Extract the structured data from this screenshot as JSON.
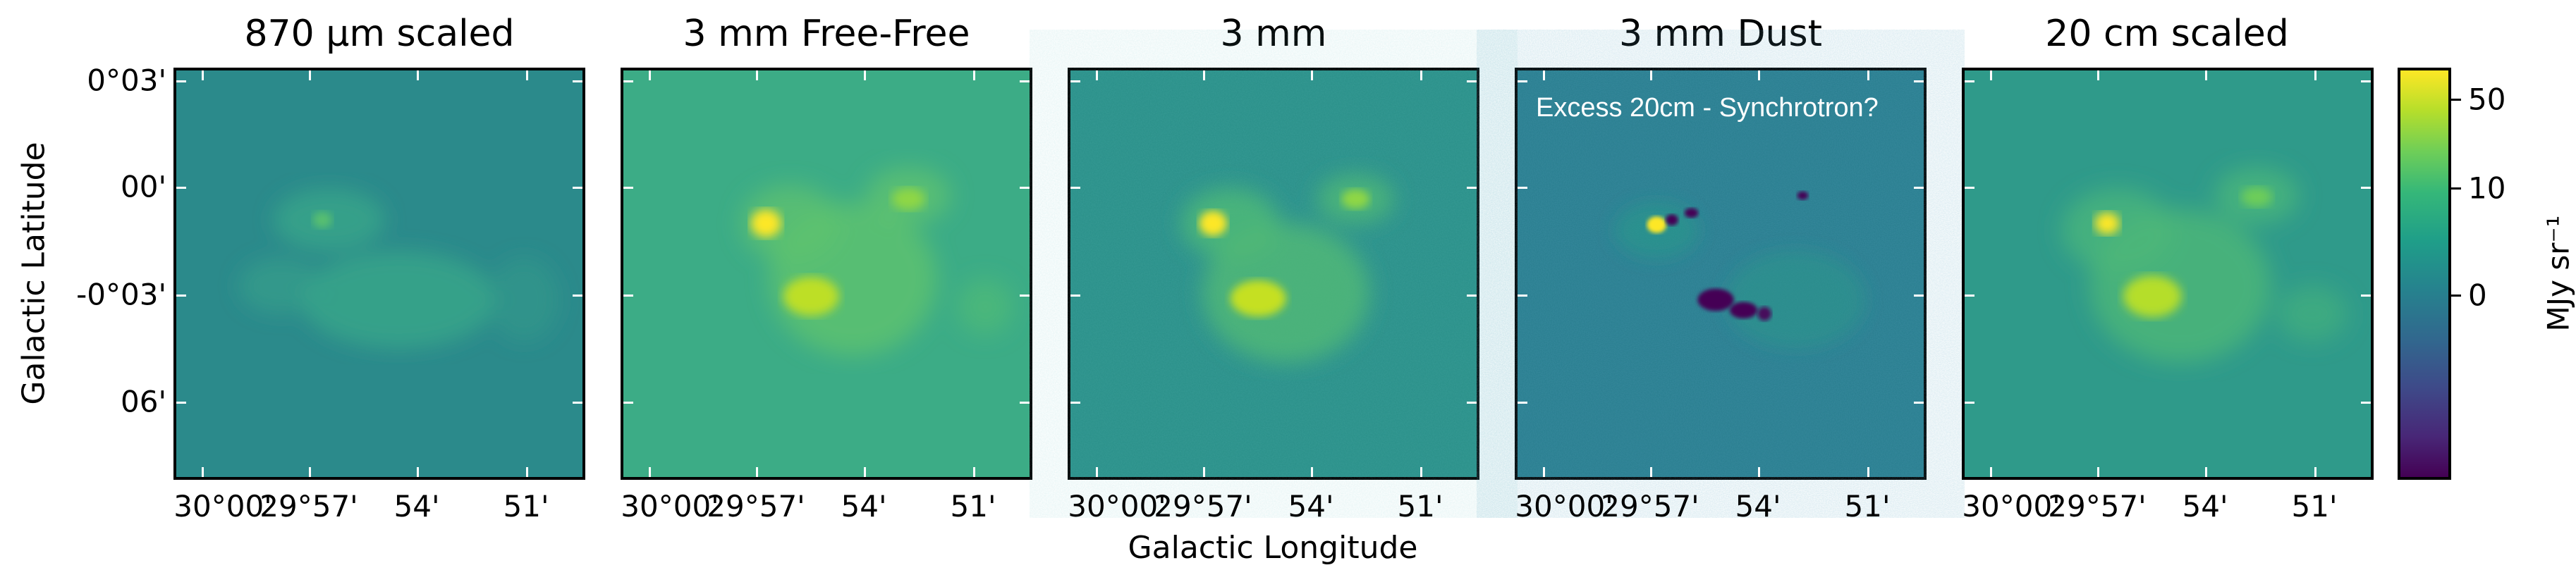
{
  "panels": [
    {
      "title": "870 μm scaled",
      "annotation": ""
    },
    {
      "title": "3 mm Free-Free",
      "annotation": ""
    },
    {
      "title": "3 mm",
      "annotation": ""
    },
    {
      "title": "3 mm Dust",
      "annotation": "Excess 20cm - Synchrotron?"
    },
    {
      "title": "20 cm scaled",
      "annotation": ""
    }
  ],
  "x_axis": {
    "label": "Galactic Longitude",
    "ticks": [
      "30°00'",
      "29°57'",
      "54'",
      "51'"
    ]
  },
  "y_axis": {
    "label": "Galactic Latitude",
    "ticks": [
      "0°03'",
      "00'",
      "-0°03'",
      "06'"
    ]
  },
  "colorbar": {
    "ticks": [
      "50",
      "10",
      "0"
    ],
    "unit": "MJy sr⁻¹",
    "colormap": "viridis"
  }
}
